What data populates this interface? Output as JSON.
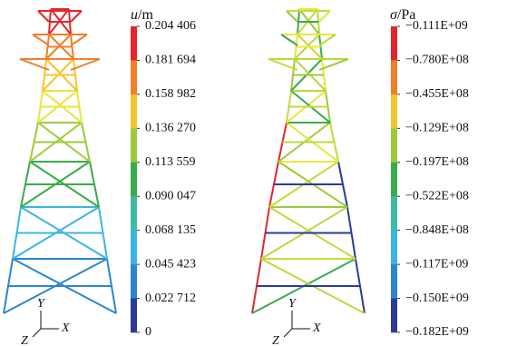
{
  "panels": [
    {
      "legend_symbol": "u",
      "legend_unit": "/m",
      "legend_labels": [
        "0.204 406",
        "0.181 694",
        "0.158 982",
        "0.136 270",
        "0.113 559",
        "0.090 047",
        "0.068 135",
        "0.045 423",
        "0.022 712",
        "0"
      ],
      "axis_labels": {
        "y": "Y",
        "x": "X",
        "z": "Z"
      }
    },
    {
      "legend_symbol": "σ",
      "legend_unit": "/Pa",
      "legend_labels": [
        "−0.111E+09",
        "−0.780E+08",
        "−0.455E+08",
        "−0.129E+08",
        "−0.197E+08",
        "−0.522E+08",
        "−0.848E+08",
        "−0.117E+09",
        "−0.150E+09",
        "−0.182E+09"
      ],
      "axis_labels": {
        "y": "Y",
        "x": "X",
        "z": "Z"
      }
    }
  ]
}
